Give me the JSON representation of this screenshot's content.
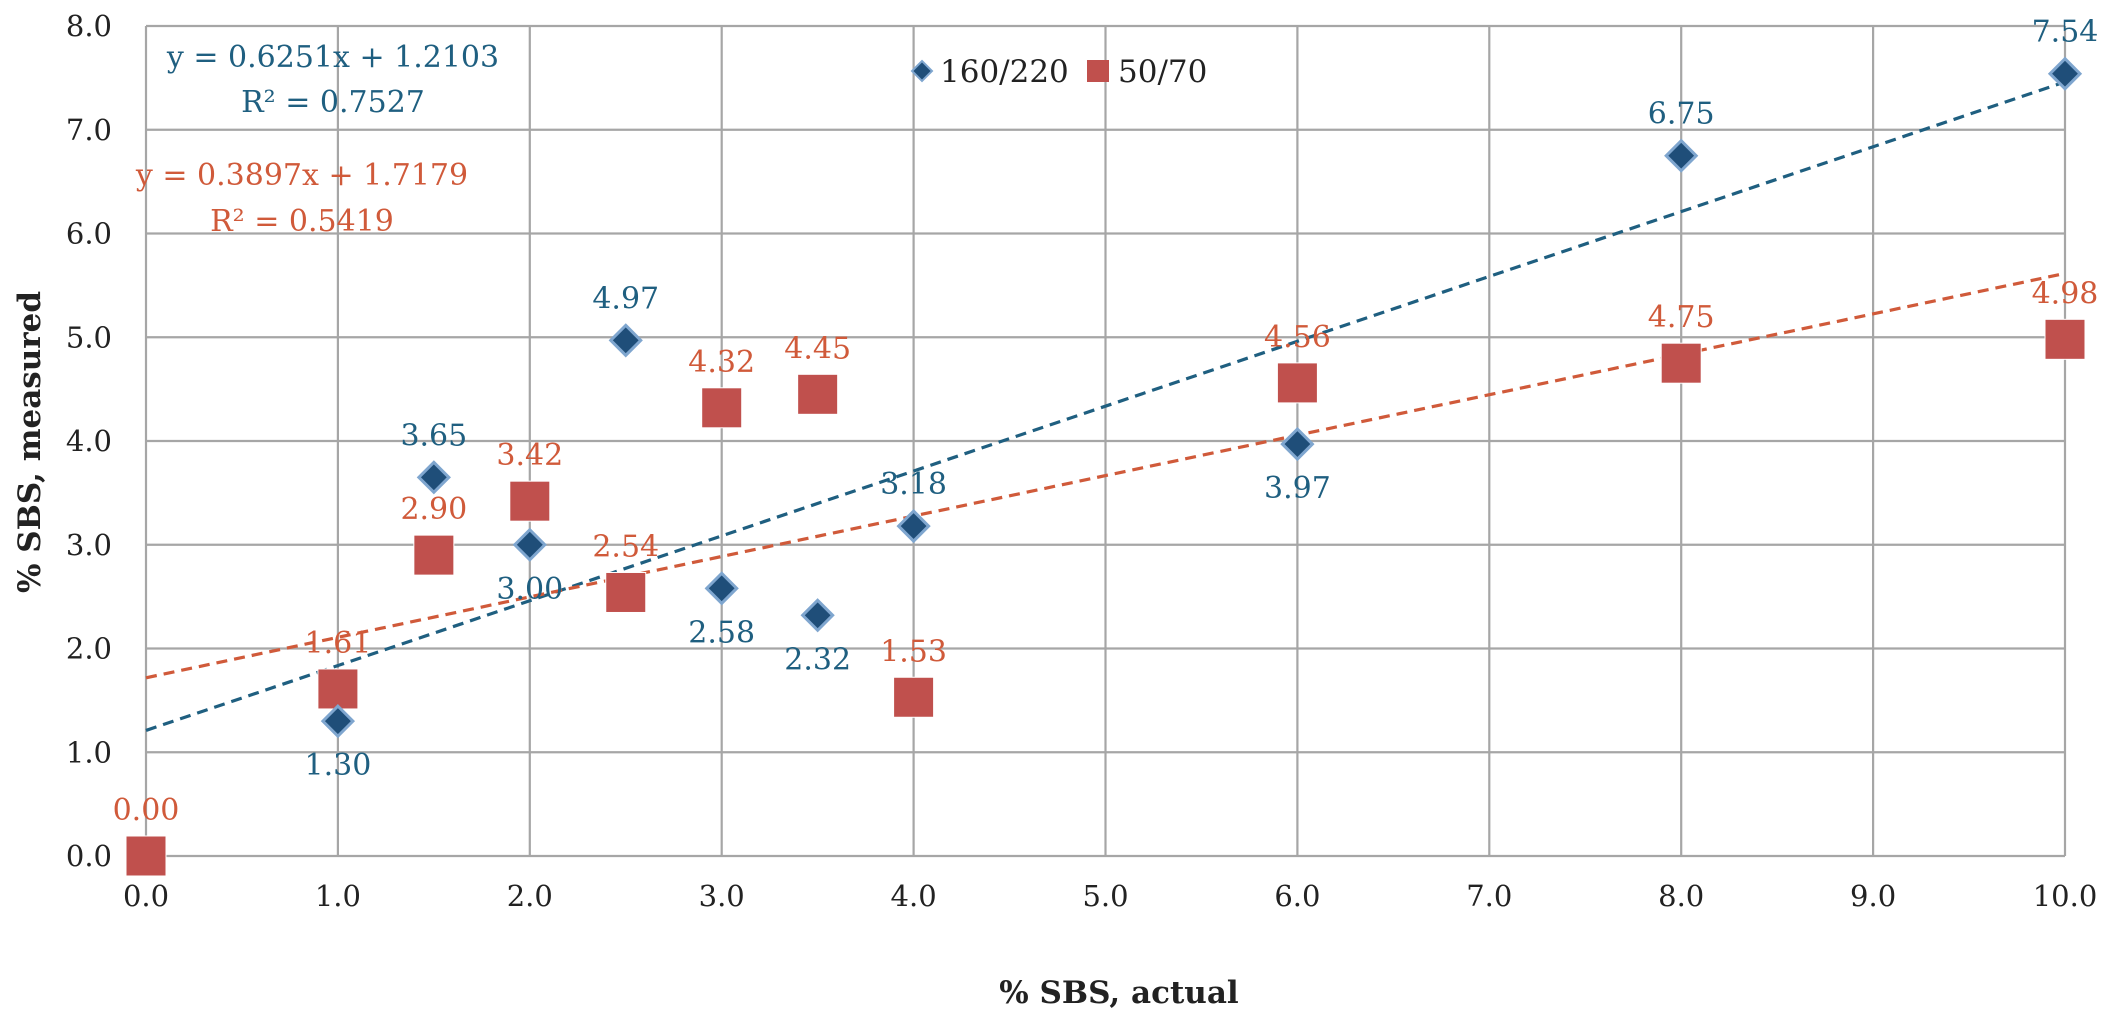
{
  "chart_data": {
    "type": "scatter",
    "xlabel": "% SBS, actual",
    "ylabel": "% SBS, measured",
    "xlim": [
      0,
      10
    ],
    "ylim": [
      0,
      8
    ],
    "x_ticks": [
      "0.0",
      "1.0",
      "2.0",
      "3.0",
      "4.0",
      "5.0",
      "6.0",
      "7.0",
      "8.0",
      "9.0",
      "10.0"
    ],
    "y_ticks": [
      "0.0",
      "1.0",
      "2.0",
      "3.0",
      "4.0",
      "5.0",
      "6.0",
      "7.0",
      "8.0"
    ],
    "grid": true,
    "legend_position": "top-center",
    "series": [
      {
        "name": "160/220",
        "marker": "diamond",
        "color": "#1f4e79",
        "label_color": "#1f5f80",
        "x": [
          1.0,
          1.5,
          2.0,
          2.5,
          3.0,
          3.5,
          4.0,
          6.0,
          8.0,
          10.0
        ],
        "y": [
          1.3,
          3.65,
          3.0,
          4.97,
          2.58,
          2.32,
          3.18,
          3.97,
          6.75,
          7.54
        ],
        "labels": [
          "1.30",
          "3.65",
          "3.00",
          "4.97",
          "2.58",
          "2.32",
          "3.18",
          "3.97",
          "6.75",
          "7.54"
        ],
        "label_positions": [
          "below",
          "above",
          "below",
          "above",
          "below",
          "below",
          "above",
          "below",
          "above",
          "above"
        ],
        "trendline": {
          "slope": 0.6251,
          "intercept": 1.2103,
          "equation": "y = 0.6251x + 1.2103",
          "r2": "R² = 0.7527",
          "color": "#1f5f80",
          "style": "dashed"
        }
      },
      {
        "name": "50/70",
        "marker": "square",
        "color": "#c0504d",
        "label_color": "#d05a3a",
        "x": [
          0.0,
          1.0,
          1.5,
          2.0,
          2.5,
          3.0,
          3.5,
          4.0,
          6.0,
          8.0,
          10.0
        ],
        "y": [
          0.0,
          1.61,
          2.9,
          3.42,
          2.54,
          4.32,
          4.45,
          1.53,
          4.56,
          4.75,
          4.98
        ],
        "labels": [
          "0.00",
          "1.61",
          "2.90",
          "3.42",
          "2.54",
          "4.32",
          "4.45",
          "1.53",
          "4.56",
          "4.75",
          "4.98"
        ],
        "label_positions": [
          "above",
          "above",
          "above",
          "above",
          "above",
          "above",
          "above",
          "above",
          "above",
          "above",
          "above"
        ],
        "trendline": {
          "slope": 0.3897,
          "intercept": 1.7179,
          "equation": "y = 0.3897x + 1.7179",
          "r2": "R² = 0.5419",
          "color": "#d05a3a",
          "style": "dashed"
        }
      }
    ]
  }
}
